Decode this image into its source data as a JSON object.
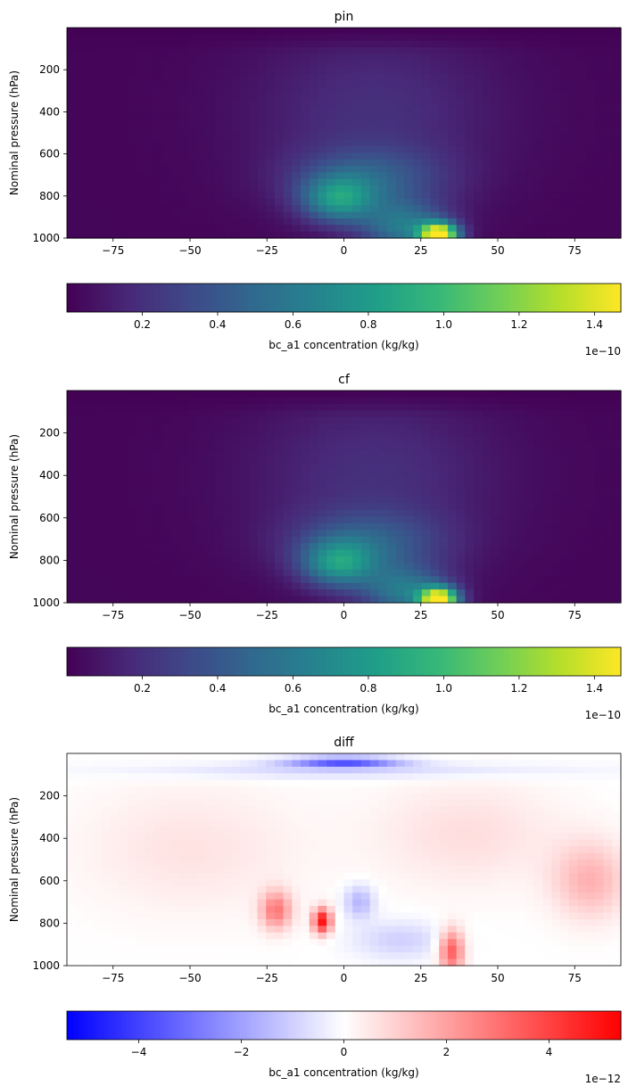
{
  "colors": {
    "viridis": [
      "#440154",
      "#482878",
      "#3e4989",
      "#31688e",
      "#26828e",
      "#1f9e89",
      "#35b779",
      "#6ece58",
      "#b5de2b",
      "#fde725"
    ],
    "bwr": [
      "#0000ff",
      "#ffffff",
      "#ff0000"
    ]
  },
  "chart_data": [
    {
      "type": "heatmap",
      "title": "pin",
      "ylabel": "Nominal pressure (hPa)",
      "xlabel": "",
      "xlim": [
        -90,
        90
      ],
      "ylim": [
        1000,
        0
      ],
      "x_ticks": [
        -75,
        -50,
        -25,
        0,
        25,
        50,
        75
      ],
      "y_ticks": [
        200,
        400,
        600,
        800,
        1000
      ],
      "colormap": "viridis",
      "colorbar": {
        "label": "bc_a1 concentration (kg/kg)",
        "range": [
          0,
          1.47e-10
        ],
        "ticks": [
          0.2,
          0.4,
          0.6,
          0.8,
          1.0,
          1.2,
          1.4
        ],
        "multiplier": "1e−10"
      },
      "features": [
        {
          "lat": 31,
          "p": 985,
          "value": 1.45e-10,
          "wlat": 6,
          "wp": 55
        },
        {
          "lat": 20,
          "p": 950,
          "value": 5.5e-11,
          "wlat": 14,
          "wp": 120
        },
        {
          "lat": -2,
          "p": 820,
          "value": 6e-11,
          "wlat": 12,
          "wp": 110
        },
        {
          "lat": 8,
          "p": 720,
          "value": 3.5e-11,
          "wlat": 25,
          "wp": 150
        },
        {
          "lat": 10,
          "p": 400,
          "value": 1.8e-11,
          "wlat": 40,
          "wp": 400
        }
      ]
    },
    {
      "type": "heatmap",
      "title": "cf",
      "ylabel": "Nominal pressure (hPa)",
      "xlabel": "",
      "xlim": [
        -90,
        90
      ],
      "ylim": [
        1000,
        0
      ],
      "x_ticks": [
        -75,
        -50,
        -25,
        0,
        25,
        50,
        75
      ],
      "y_ticks": [
        200,
        400,
        600,
        800,
        1000
      ],
      "colormap": "viridis",
      "colorbar": {
        "label": "bc_a1 concentration (kg/kg)",
        "range": [
          0,
          1.47e-10
        ],
        "ticks": [
          0.2,
          0.4,
          0.6,
          0.8,
          1.0,
          1.2,
          1.4
        ],
        "multiplier": "1e−10"
      },
      "features": [
        {
          "lat": 31,
          "p": 985,
          "value": 1.45e-10,
          "wlat": 6,
          "wp": 55
        },
        {
          "lat": 20,
          "p": 950,
          "value": 5.5e-11,
          "wlat": 14,
          "wp": 120
        },
        {
          "lat": -2,
          "p": 820,
          "value": 6e-11,
          "wlat": 12,
          "wp": 110
        },
        {
          "lat": 8,
          "p": 720,
          "value": 3.5e-11,
          "wlat": 25,
          "wp": 150
        },
        {
          "lat": 10,
          "p": 400,
          "value": 1.8e-11,
          "wlat": 40,
          "wp": 400
        }
      ]
    },
    {
      "type": "heatmap",
      "title": "diff",
      "ylabel": "Nominal pressure (hPa)",
      "xlabel": "",
      "xlim": [
        -90,
        90
      ],
      "ylim": [
        1000,
        0
      ],
      "x_ticks": [
        -75,
        -50,
        -25,
        0,
        25,
        50,
        75
      ],
      "y_ticks": [
        200,
        400,
        600,
        800,
        1000
      ],
      "colormap": "bwr",
      "colorbar": {
        "label": "bc_a1 concentration (kg/kg)",
        "range": [
          -5.4e-12,
          5.4e-12
        ],
        "ticks": [
          -4,
          -2,
          0,
          2,
          4
        ],
        "multiplier": "1e−12"
      },
      "features": [
        {
          "lat": 0,
          "p": 40,
          "value": -3.5e-12,
          "wlat": 18,
          "wp": 25
        },
        {
          "lat": 0,
          "p": 80,
          "value": -9e-13,
          "wlat": 70,
          "wp": 40
        },
        {
          "lat": -7,
          "p": 790,
          "value": 5e-12,
          "wlat": 3,
          "wp": 60
        },
        {
          "lat": -22,
          "p": 740,
          "value": 2.8e-12,
          "wlat": 5,
          "wp": 90
        },
        {
          "lat": 5,
          "p": 700,
          "value": -1.6e-12,
          "wlat": 5,
          "wp": 80
        },
        {
          "lat": 35,
          "p": 930,
          "value": 3.5e-12,
          "wlat": 4,
          "wp": 100
        },
        {
          "lat": 18,
          "p": 880,
          "value": -1e-12,
          "wlat": 15,
          "wp": 90
        },
        {
          "lat": 80,
          "p": 600,
          "value": 1.6e-12,
          "wlat": 12,
          "wp": 180
        },
        {
          "lat": -50,
          "p": 450,
          "value": 6e-13,
          "wlat": 35,
          "wp": 300
        },
        {
          "lat": 40,
          "p": 380,
          "value": 7e-13,
          "wlat": 30,
          "wp": 250
        }
      ]
    }
  ]
}
